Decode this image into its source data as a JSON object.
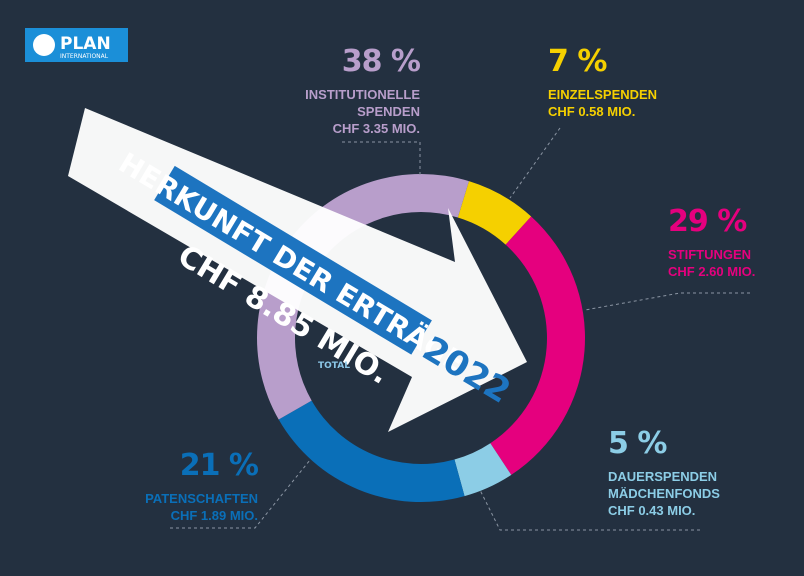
{
  "logo": {
    "name": "PLAN",
    "subtitle": "INTERNATIONAL"
  },
  "chart_data": {
    "type": "pie",
    "title": "HERKUNFT DER ERTRÄGE",
    "year": "2022",
    "total": "CHF 8.85 MIO.",
    "total_label": "TOTAL",
    "categories": [
      "EINZELSPENDEN",
      "STIFTUNGEN",
      "DAUERSPENDEN MÄDCHENFONDS",
      "PATENSCHAFTEN",
      "INSTITUTIONELLE SPENDEN"
    ],
    "values": [
      7,
      29,
      5,
      21,
      38
    ],
    "value_labels": [
      "7 %",
      "29 %",
      "5 %",
      "21 %",
      "38 %"
    ],
    "amount_labels": [
      "CHF 0.58 MIO.",
      "CHF 2.60 MIO.",
      "CHF 0.43 MIO.",
      "CHF 1.89 MIO.",
      "CHF 3.35 MIO."
    ],
    "colors": [
      "#f5d000",
      "#e5007e",
      "#8ccde6",
      "#0a6fb8",
      "#b89ecb"
    ]
  }
}
